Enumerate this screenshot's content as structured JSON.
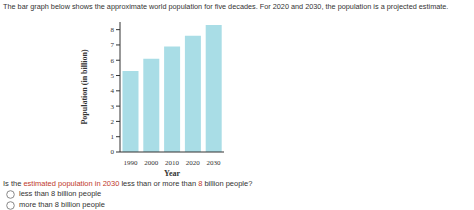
{
  "intro": "The bar graph below shows the approximate world population for five decades. For 2020 and 2030, the population is a projected estimate.",
  "chart_data": {
    "type": "bar",
    "categories": [
      "1990",
      "2000",
      "2010",
      "2020",
      "2030"
    ],
    "values": [
      5.3,
      6.1,
      6.9,
      7.6,
      8.3
    ],
    "color": "#a9dde6",
    "xlabel": "Year",
    "ylabel": "Population (in billion)",
    "ylim": [
      0,
      8.5
    ],
    "yticks": [
      0,
      1,
      2,
      3,
      4,
      5,
      6,
      7,
      8
    ]
  },
  "question": {
    "parts": [
      "Is the ",
      "estimated population in 2030",
      " less than or more than ",
      "8",
      " billion people?"
    ]
  },
  "options": [
    "less than 8 billion people",
    "more than 8 billion people"
  ]
}
